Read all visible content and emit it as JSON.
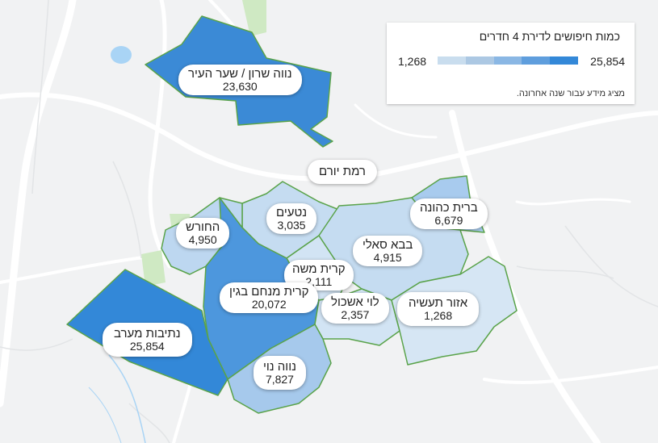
{
  "legend": {
    "title": "כמות חיפושים לדירת 4 חדרים",
    "min_label": "1,268",
    "max_label": "25,854",
    "scale_colors": [
      "#c9ddee",
      "#acc8e3",
      "#8ab7e4",
      "#5f9edd",
      "#3388d8"
    ],
    "note": "מציג מידע עבור שנה אחרונה."
  },
  "neighborhoods": [
    {
      "id": "neve-sharon",
      "name": "נווה שרון / שער העיר",
      "count": "23,630",
      "value": 23630,
      "color": "#3b8ad6"
    },
    {
      "id": "ramat-yoram",
      "name": "רמת יורם",
      "count": "",
      "value": null,
      "color": ""
    },
    {
      "id": "netaim",
      "name": "נטעים",
      "count": "3,035",
      "value": 3035,
      "color": "#c5dcf1"
    },
    {
      "id": "brit-kehuna",
      "name": "ברית כהונה",
      "count": "6,679",
      "value": 6679,
      "color": "#a8cbee"
    },
    {
      "id": "hahoresh",
      "name": "החורש",
      "count": "4,950",
      "value": 4950,
      "color": "#bdd7f0"
    },
    {
      "id": "baba-sali",
      "name": "בבא סאלי",
      "count": "4,915",
      "value": 4915,
      "color": "#c5dcf1"
    },
    {
      "id": "kiryat-moshe",
      "name": "קרית משה",
      "count": "2,111",
      "value": 2111,
      "color": "#d2e4f4"
    },
    {
      "id": "kiryat-menachem-begin",
      "name": "קרית מנחם בגין",
      "count": "20,072",
      "value": 20072,
      "color": "#4d97dd"
    },
    {
      "id": "levi-eshkol",
      "name": "לוי אשכול",
      "count": "2,357",
      "value": 2357,
      "color": "#d2e4f4"
    },
    {
      "id": "azor-taasiya",
      "name": "אזור תעשיה",
      "count": "1,268",
      "value": 1268,
      "color": "#d6e6f4"
    },
    {
      "id": "netivot-maarav",
      "name": "נתיבות מערב",
      "count": "25,854",
      "value": 25854,
      "color": "#3388d8"
    },
    {
      "id": "neve-noy",
      "name": "נווה נוי",
      "count": "7,827",
      "value": 7827,
      "color": "#a6c9ec"
    }
  ]
}
